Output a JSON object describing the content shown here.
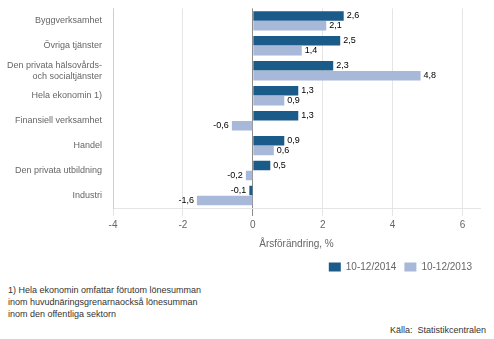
{
  "chart_data": {
    "type": "bar",
    "orientation": "horizontal",
    "categories": [
      "Industri",
      "Den privata utbildning",
      "Handel",
      "Finansiell verksamhet",
      "Hela ekonomin 1)",
      "Den privata hälsovårds- och socialtjänster",
      "Övriga tjänster",
      "Byggverksamhet"
    ],
    "series": [
      {
        "name": "10-12/2014",
        "color": "#1b5b8a",
        "values": [
          -0.1,
          0.5,
          0.9,
          1.3,
          1.3,
          2.3,
          2.5,
          2.6
        ],
        "value_labels": [
          "-0,1",
          "0,5",
          "0,9",
          "1,3",
          "1,3",
          "2,3",
          "2,5",
          "2,6"
        ]
      },
      {
        "name": "10-12/2013",
        "color": "#a8b8d8",
        "values": [
          -1.6,
          -0.2,
          0.6,
          -0.6,
          0.9,
          4.8,
          1.4,
          2.1
        ],
        "value_labels": [
          "-1,6",
          "-0,2",
          "0,6",
          "-0,6",
          "0,9",
          "4,8",
          "1,4",
          "2,1"
        ]
      }
    ],
    "xlim": [
      -4,
      6.5
    ],
    "xticks": [
      -4,
      -2,
      0,
      2,
      4,
      6
    ],
    "xlabel": "Årsförändring, %",
    "footnote": "1) Hela ekonomin omfattar förutom lönesumman\ninom huvudnäringsgrenarnaockså lönesumman\ninom den offentliga sektorn",
    "source": "Källa:  Statistikcentralen",
    "grid": true,
    "legend": "lower right",
    "data_labels": true
  }
}
